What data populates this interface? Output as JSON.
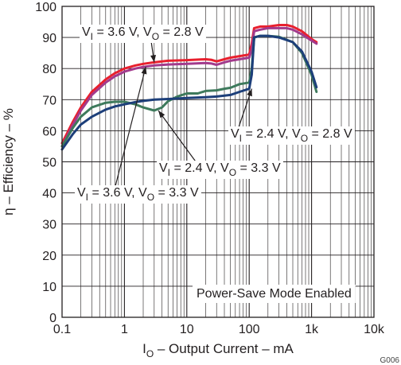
{
  "chart_data": {
    "type": "line",
    "x_scale": "log",
    "xlim": [
      0.1,
      10000
    ],
    "ylim": [
      0,
      100
    ],
    "x_ticks": [
      {
        "value": 0.1,
        "label": "0.1"
      },
      {
        "value": 1,
        "label": "1"
      },
      {
        "value": 10,
        "label": "10"
      },
      {
        "value": 100,
        "label": "100"
      },
      {
        "value": 1000,
        "label": "1k"
      },
      {
        "value": 10000,
        "label": "10k"
      }
    ],
    "y_ticks": [
      0,
      10,
      20,
      30,
      40,
      50,
      60,
      70,
      80,
      90,
      100
    ],
    "y_tick_labels": [
      "0",
      "10",
      "20",
      "30",
      "40",
      "50",
      "60",
      "70",
      "80",
      "90",
      "100"
    ],
    "xlabel": {
      "main": "I",
      "sub": "O",
      "rest": " – Output Current – mA"
    },
    "ylabel": "η – Efficiency – %",
    "grid": true,
    "figure_id": "G006",
    "note": "Power-Save Mode Enabled",
    "series": [
      {
        "key": "s36_28",
        "color": "#e8202e",
        "points": [
          [
            0.1,
            56
          ],
          [
            0.15,
            63
          ],
          [
            0.2,
            67.5
          ],
          [
            0.3,
            72.5
          ],
          [
            0.5,
            76.5
          ],
          [
            0.7,
            78.5
          ],
          [
            1,
            80
          ],
          [
            1.5,
            81
          ],
          [
            2,
            81.5
          ],
          [
            3,
            82
          ],
          [
            5,
            82.5
          ],
          [
            10,
            82.7
          ],
          [
            20,
            83
          ],
          [
            25,
            82.8
          ],
          [
            30,
            82.3
          ],
          [
            40,
            83
          ],
          [
            50,
            83.5
          ],
          [
            70,
            84
          ],
          [
            100,
            84.5
          ],
          [
            110,
            88
          ],
          [
            120,
            93
          ],
          [
            150,
            93.5
          ],
          [
            200,
            93.5
          ],
          [
            300,
            94
          ],
          [
            400,
            94
          ],
          [
            500,
            93.5
          ],
          [
            700,
            92
          ],
          [
            1000,
            89.5
          ],
          [
            1200,
            88.5
          ]
        ]
      },
      {
        "key": "s36_33",
        "color": "#a23a8c",
        "points": [
          [
            0.1,
            55
          ],
          [
            0.15,
            62
          ],
          [
            0.2,
            66.5
          ],
          [
            0.3,
            71.5
          ],
          [
            0.5,
            75.5
          ],
          [
            0.7,
            77.5
          ],
          [
            1,
            79
          ],
          [
            1.5,
            80
          ],
          [
            2,
            80.5
          ],
          [
            3,
            81
          ],
          [
            5,
            81.3
          ],
          [
            10,
            81.5
          ],
          [
            20,
            81.8
          ],
          [
            25,
            81.6
          ],
          [
            30,
            81.2
          ],
          [
            40,
            82
          ],
          [
            50,
            82.5
          ],
          [
            70,
            83
          ],
          [
            100,
            83.5
          ],
          [
            110,
            86
          ],
          [
            120,
            92
          ],
          [
            150,
            92.5
          ],
          [
            200,
            93
          ],
          [
            300,
            93
          ],
          [
            400,
            93
          ],
          [
            500,
            92.5
          ],
          [
            700,
            91
          ],
          [
            1000,
            89
          ],
          [
            1200,
            88
          ]
        ]
      },
      {
        "key": "s24_33",
        "color": "#3e7a5c",
        "points": [
          [
            0.1,
            55
          ],
          [
            0.15,
            61
          ],
          [
            0.2,
            64.5
          ],
          [
            0.3,
            67.5
          ],
          [
            0.5,
            69
          ],
          [
            0.7,
            69.3
          ],
          [
            1,
            69.3
          ],
          [
            1.5,
            68.5
          ],
          [
            2,
            67.5
          ],
          [
            3,
            66.5
          ],
          [
            4,
            67.5
          ],
          [
            5,
            69.5
          ],
          [
            7,
            71
          ],
          [
            10,
            72
          ],
          [
            15,
            72
          ],
          [
            20,
            72.8
          ],
          [
            30,
            73
          ],
          [
            40,
            73.5
          ],
          [
            50,
            73.8
          ],
          [
            70,
            75
          ],
          [
            100,
            75.5
          ],
          [
            110,
            80
          ],
          [
            120,
            90
          ],
          [
            150,
            90.5
          ],
          [
            200,
            90.5
          ],
          [
            300,
            90.2
          ],
          [
            500,
            88.5
          ],
          [
            700,
            85
          ],
          [
            1000,
            78
          ],
          [
            1200,
            72.5
          ]
        ]
      },
      {
        "key": "s24_28",
        "color": "#1d3f7a",
        "points": [
          [
            0.1,
            54
          ],
          [
            0.15,
            59
          ],
          [
            0.2,
            62
          ],
          [
            0.3,
            64.5
          ],
          [
            0.5,
            66.8
          ],
          [
            0.7,
            67.8
          ],
          [
            1,
            68.5
          ],
          [
            1.5,
            69.2
          ],
          [
            2,
            69.6
          ],
          [
            3,
            70
          ],
          [
            5,
            70.2
          ],
          [
            10,
            70.5
          ],
          [
            20,
            70.8
          ],
          [
            30,
            71
          ],
          [
            40,
            71.3
          ],
          [
            50,
            71.5
          ],
          [
            70,
            72.5
          ],
          [
            100,
            73.5
          ],
          [
            110,
            78
          ],
          [
            120,
            90
          ],
          [
            150,
            90.5
          ],
          [
            200,
            90.5
          ],
          [
            300,
            90
          ],
          [
            500,
            88.5
          ],
          [
            700,
            85.5
          ],
          [
            1000,
            79
          ],
          [
            1200,
            74
          ]
        ]
      }
    ],
    "annotations": [
      {
        "key": "a1",
        "v_sub": "I",
        "v_val": " = 3.6 V, ",
        "o_sub": "O",
        "o_val": " = 2.8 V",
        "target": [
          3,
          82
        ]
      },
      {
        "key": "a2",
        "v_sub": "I",
        "v_val": " = 2.4 V, ",
        "o_sub": "O",
        "o_val": " = 2.8 V",
        "target": [
          110,
          73.5
        ]
      },
      {
        "key": "a3",
        "v_sub": "I",
        "v_val": " = 2.4 V, ",
        "o_sub": "O",
        "o_val": " = 3.3 V",
        "target": [
          3.5,
          66.5
        ]
      },
      {
        "key": "a4",
        "v_sub": "I",
        "v_val": " = 3.6 V, ",
        "o_sub": "O",
        "o_val": " = 3.3 V",
        "target": [
          2.2,
          80.6
        ]
      }
    ]
  }
}
